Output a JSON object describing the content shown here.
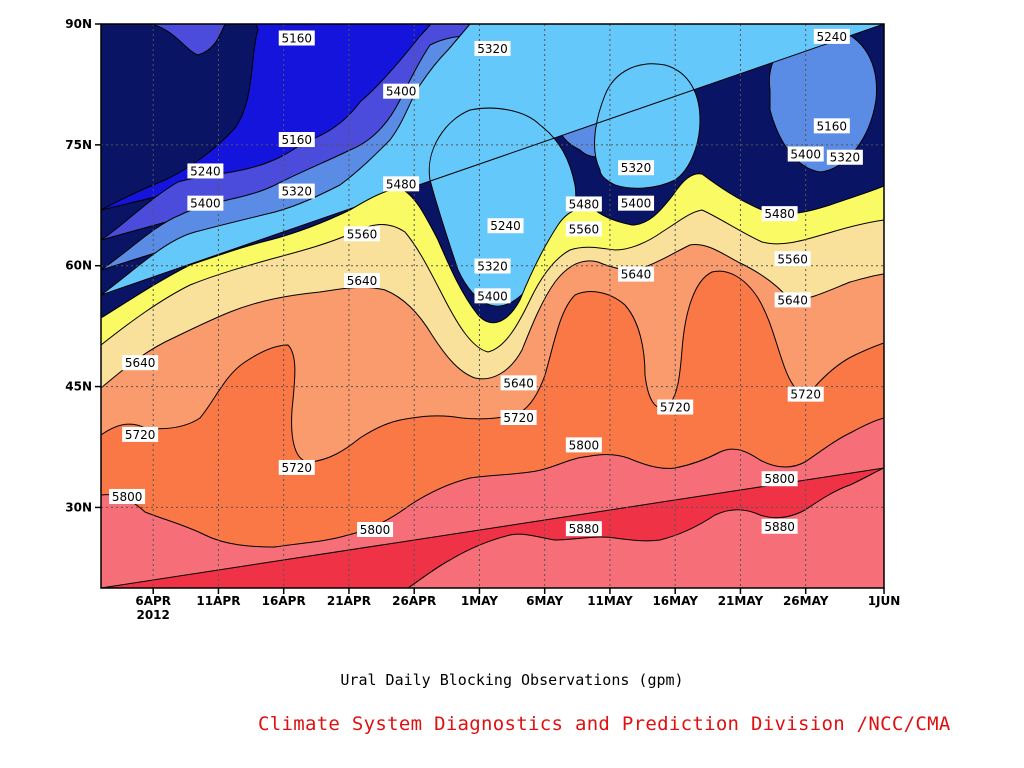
{
  "chart_data": {
    "type": "contour",
    "title": "",
    "xlabel": "Ural Daily Blocking Observations (gpm)",
    "ylabel": "",
    "x_ticks": [
      "6APR",
      "11APR",
      "16APR",
      "21APR",
      "26APR",
      "1MAY",
      "6MAY",
      "11MAY",
      "16MAY",
      "21MAY",
      "26MAY",
      "1JUN"
    ],
    "x_year_label": "2012",
    "x_range": [
      "2012-04-02",
      "2012-06-01"
    ],
    "y_ticks": [
      "30N",
      "45N",
      "60N",
      "75N",
      "90N"
    ],
    "ylim": [
      20,
      90
    ],
    "grid": true,
    "contour_levels": [
      5160,
      5240,
      5320,
      5400,
      5480,
      5560,
      5640,
      5720,
      5800,
      5880
    ],
    "fill_colors": [
      "#0a1464",
      "#1414dc",
      "#4b4bdc",
      "#5a8ce6",
      "#64c8fa",
      "#fafa64",
      "#fae19b",
      "#fa9b6e",
      "#fa7846",
      "#f56e78",
      "#f03246"
    ],
    "contour_labels": [
      {
        "level": "5160",
        "date": "2012-04-17",
        "lat": 88.2
      },
      {
        "level": "5160",
        "date": "2012-04-17",
        "lat": 75.6
      },
      {
        "level": "5240",
        "date": "2012-04-10",
        "lat": 71.7
      },
      {
        "level": "5320",
        "date": "2012-04-17",
        "lat": 69.2
      },
      {
        "level": "5400",
        "date": "2012-04-10",
        "lat": 67.7
      },
      {
        "level": "5400",
        "date": "2012-04-25",
        "lat": 81.6
      },
      {
        "level": "5480",
        "date": "2012-04-25",
        "lat": 70.1
      },
      {
        "level": "5560",
        "date": "2012-04-22",
        "lat": 63.9
      },
      {
        "level": "5640",
        "date": "2012-04-22",
        "lat": 58.1
      },
      {
        "level": "5640",
        "date": "2012-04-05",
        "lat": 47.9
      },
      {
        "level": "5720",
        "date": "2012-04-05",
        "lat": 39.0
      },
      {
        "level": "5720",
        "date": "2012-04-17",
        "lat": 34.9
      },
      {
        "level": "5800",
        "date": "2012-04-04",
        "lat": 31.3
      },
      {
        "level": "5800",
        "date": "2012-04-23",
        "lat": 27.2
      },
      {
        "level": "5320",
        "date": "2012-05-02",
        "lat": 86.9
      },
      {
        "level": "5240",
        "date": "2012-05-03",
        "lat": 64.9
      },
      {
        "level": "5320",
        "date": "2012-05-02",
        "lat": 59.9
      },
      {
        "level": "5400",
        "date": "2012-05-02",
        "lat": 56.2
      },
      {
        "level": "5640",
        "date": "2012-05-04",
        "lat": 45.4
      },
      {
        "level": "5720",
        "date": "2012-05-04",
        "lat": 41.1
      },
      {
        "level": "5480",
        "date": "2012-05-09",
        "lat": 67.6
      },
      {
        "level": "5560",
        "date": "2012-05-09",
        "lat": 64.5
      },
      {
        "level": "5320",
        "date": "2012-05-13",
        "lat": 72.1
      },
      {
        "level": "5400",
        "date": "2012-05-13",
        "lat": 67.7
      },
      {
        "level": "5640",
        "date": "2012-05-13",
        "lat": 58.9
      },
      {
        "level": "5800",
        "date": "2012-05-09",
        "lat": 37.7
      },
      {
        "level": "5880",
        "date": "2012-05-09",
        "lat": 27.3
      },
      {
        "level": "5720",
        "date": "2012-05-16",
        "lat": 42.4
      },
      {
        "level": "5240",
        "date": "2012-05-28",
        "lat": 88.4
      },
      {
        "level": "5160",
        "date": "2012-05-28",
        "lat": 77.3
      },
      {
        "level": "5400",
        "date": "2012-05-26",
        "lat": 73.8
      },
      {
        "level": "5320",
        "date": "2012-05-29",
        "lat": 73.4
      },
      {
        "level": "5480",
        "date": "2012-05-24",
        "lat": 66.4
      },
      {
        "level": "5560",
        "date": "2012-05-25",
        "lat": 60.8
      },
      {
        "level": "5640",
        "date": "2012-05-25",
        "lat": 55.7
      },
      {
        "level": "5720",
        "date": "2012-05-26",
        "lat": 44.0
      },
      {
        "level": "5800",
        "date": "2012-05-24",
        "lat": 33.5
      },
      {
        "level": "5880",
        "date": "2012-05-24",
        "lat": 27.6
      }
    ]
  },
  "footer": {
    "credit": "Climate System Diagnostics and Prediction Division /NCC/CMA",
    "credit_color": "#e01010"
  }
}
